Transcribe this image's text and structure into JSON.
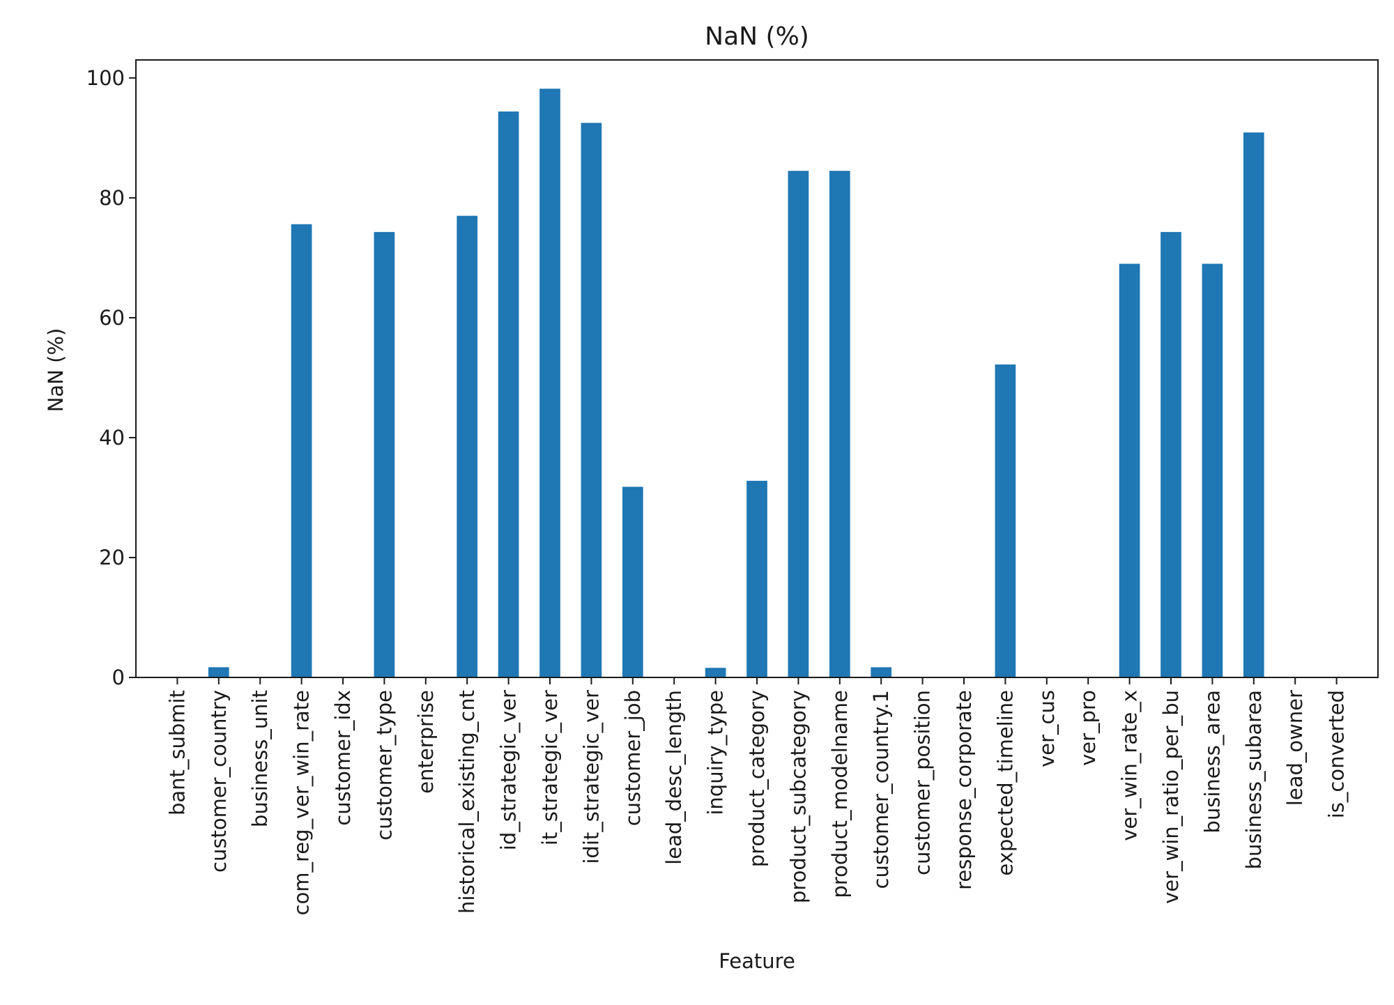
{
  "chart_data": {
    "type": "bar",
    "title": "NaN (%)",
    "xlabel": "Feature",
    "ylabel": "NaN (%)",
    "ylim": [
      0,
      103
    ],
    "yticks": [
      0,
      20,
      40,
      60,
      80,
      100
    ],
    "grid": false,
    "legend": "none",
    "bar_color": "#1f77b4",
    "categories": [
      "bant_submit",
      "customer_country",
      "business_unit",
      "com_reg_ver_win_rate",
      "customer_idx",
      "customer_type",
      "enterprise",
      "historical_existing_cnt",
      "id_strategic_ver",
      "it_strategic_ver",
      "idit_strategic_ver",
      "customer_job",
      "lead_desc_length",
      "inquiry_type",
      "product_category",
      "product_subcategory",
      "product_modelname",
      "customer_country.1",
      "customer_position",
      "response_corporate",
      "expected_timeline",
      "ver_cus",
      "ver_pro",
      "ver_win_rate_x",
      "ver_win_ratio_per_bu",
      "business_area",
      "business_subarea",
      "lead_owner",
      "is_converted"
    ],
    "values": [
      0,
      1.7,
      0,
      75.6,
      0,
      74.3,
      0,
      77.0,
      94.4,
      98.2,
      92.5,
      31.8,
      0,
      1.6,
      32.8,
      84.5,
      84.5,
      1.7,
      0,
      0,
      52.2,
      0,
      0,
      69.0,
      74.3,
      69.0,
      90.9,
      0,
      0
    ]
  }
}
